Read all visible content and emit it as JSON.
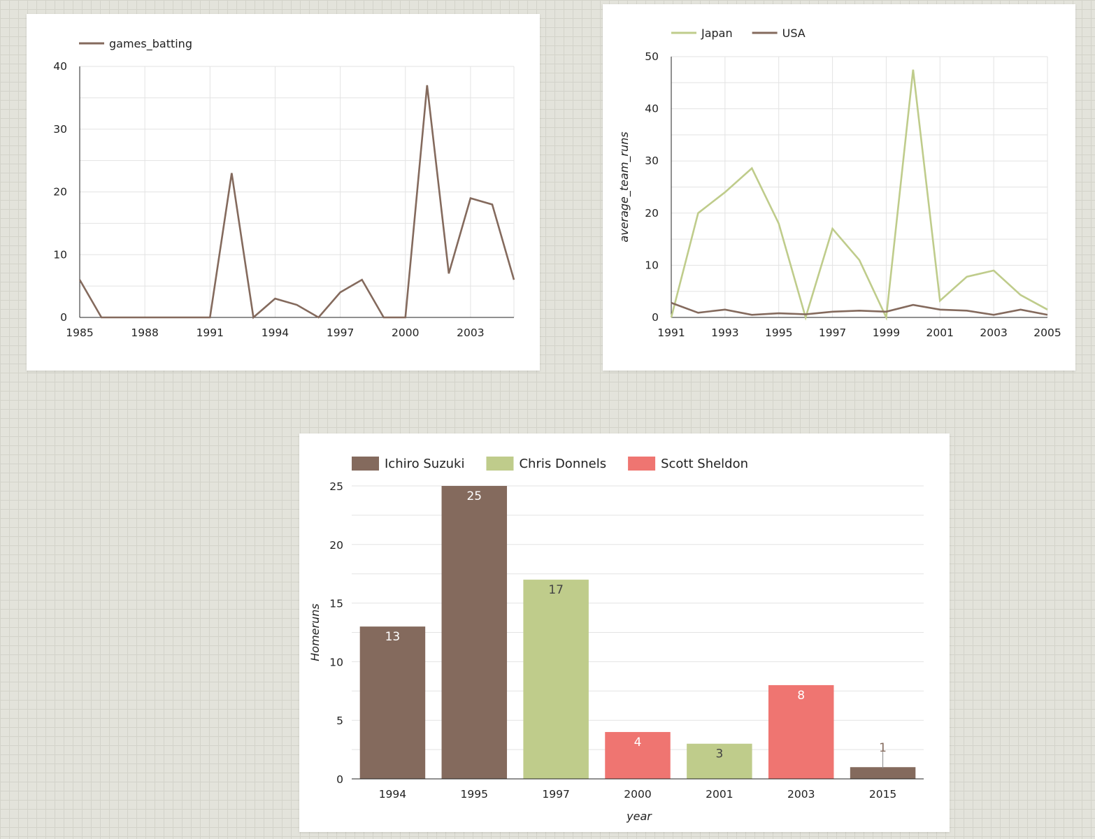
{
  "colors": {
    "brown": "#846a5d",
    "green": "#bfcc8b",
    "red": "#ef7571",
    "grid": "#e3e3e3",
    "axis": "#222222"
  },
  "chart_data": [
    {
      "id": "games-batting-chart",
      "type": "line",
      "title": "",
      "xlabel": "",
      "ylabel": "",
      "xlim": [
        1985,
        2005
      ],
      "ylim": [
        0,
        40
      ],
      "x_ticks": [
        "1985",
        "1988",
        "1991",
        "1994",
        "1997",
        "2000",
        "2003"
      ],
      "y_ticks": [
        "0",
        "10",
        "20",
        "30",
        "40"
      ],
      "grid": true,
      "legend_position": "top-left",
      "x": [
        1985,
        1986,
        1987,
        1988,
        1989,
        1990,
        1991,
        1992,
        1993,
        1994,
        1995,
        1996,
        1997,
        1998,
        1999,
        2000,
        2001,
        2002,
        2003,
        2004,
        2005
      ],
      "series": [
        {
          "name": "games_batting",
          "color": "#846a5d",
          "values": [
            6,
            0,
            0,
            0,
            0,
            0,
            0,
            23,
            0,
            3,
            2,
            0,
            4,
            6,
            0,
            0,
            37,
            7,
            19,
            18,
            6
          ]
        }
      ]
    },
    {
      "id": "team-runs-chart",
      "type": "line",
      "title": "",
      "xlabel": "",
      "ylabel": "average_team_runs",
      "xlim": [
        1991,
        2005
      ],
      "ylim": [
        0,
        50
      ],
      "x_ticks": [
        "1991",
        "1993",
        "1995",
        "1997",
        "1999",
        "2001",
        "2003",
        "2005"
      ],
      "y_ticks": [
        "0",
        "10",
        "20",
        "30",
        "40",
        "50"
      ],
      "grid": true,
      "legend_position": "top-left",
      "x": [
        1991,
        1992,
        1993,
        1994,
        1995,
        1996,
        1997,
        1998,
        1999,
        2000,
        2001,
        2002,
        2003,
        2004,
        2005
      ],
      "series": [
        {
          "name": "Japan",
          "color": "#bfcc8b",
          "values": [
            0,
            20,
            24,
            28.6,
            18,
            0,
            17,
            11,
            0,
            47.5,
            3.2,
            7.8,
            9,
            4.3,
            1.5
          ]
        },
        {
          "name": "USA",
          "color": "#846a5d",
          "values": [
            2.8,
            0.9,
            1.5,
            0.5,
            0.8,
            0.6,
            1.1,
            1.3,
            1.1,
            2.4,
            1.5,
            1.3,
            0.5,
            1.5,
            0.5
          ]
        }
      ]
    },
    {
      "id": "homeruns-chart",
      "type": "bar",
      "title": "",
      "xlabel": "year",
      "ylabel": "Homeruns",
      "ylim": [
        0,
        25
      ],
      "y_ticks": [
        "0",
        "5",
        "10",
        "15",
        "20",
        "25"
      ],
      "grid": true,
      "legend_position": "top-left",
      "categories": [
        "1994",
        "1995",
        "1997",
        "2000",
        "2001",
        "2003",
        "2015"
      ],
      "values": [
        13,
        25,
        17,
        4,
        3,
        8,
        1
      ],
      "data_labels": [
        "13",
        "25",
        "17",
        "4",
        "3",
        "8",
        "1"
      ],
      "bar_series": [
        "Ichiro Suzuki",
        "Ichiro Suzuki",
        "Chris Donnels",
        "Scott Sheldon",
        "Chris Donnels",
        "Scott Sheldon",
        "Ichiro Suzuki"
      ],
      "series": [
        {
          "name": "Ichiro Suzuki",
          "color": "#846a5d"
        },
        {
          "name": "Chris Donnels",
          "color": "#bfcc8b"
        },
        {
          "name": "Scott Sheldon",
          "color": "#ef7571"
        }
      ]
    }
  ]
}
